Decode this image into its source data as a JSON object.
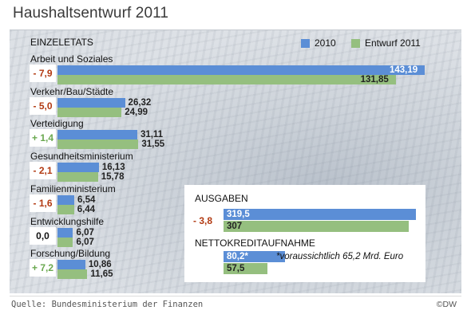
{
  "title": "Haushaltsentwurf 2011",
  "section_label": "EINZELETATS",
  "legend": [
    {
      "name": "2010",
      "color": "#5b8ed6"
    },
    {
      "name": "Entwurf 2011",
      "color": "#95bf7f"
    }
  ],
  "chart_data": [
    {
      "type": "bar",
      "title": "EINZELETATS",
      "categories": [
        "Arbeit und Soziales",
        "Verkehr/Bau/Städte",
        "Verteidigung",
        "Gesundheitsministerium",
        "Familienministerium",
        "Entwicklungshilfe",
        "Forschung/Bildung"
      ],
      "series": [
        {
          "name": "2010",
          "values": [
            143.19,
            26.32,
            31.11,
            16.13,
            6.54,
            6.07,
            10.86
          ],
          "labels": [
            "143,19",
            "26,32",
            "31,11",
            "16,13",
            "6,54",
            "6,07",
            "10,86"
          ]
        },
        {
          "name": "Entwurf 2011",
          "values": [
            131.85,
            24.99,
            31.55,
            15.78,
            6.44,
            6.07,
            11.65
          ],
          "labels": [
            "131,85",
            "24,99",
            "31,55",
            "15,78",
            "6,44",
            "6,07",
            "11,65"
          ]
        }
      ],
      "changes": [
        "- 7,9",
        "- 5,0",
        "+ 1,4",
        "- 2,1",
        "- 1,6",
        "0,0",
        "+ 7,2"
      ],
      "xlim": [
        0,
        143.19
      ]
    },
    {
      "type": "bar",
      "title": "AUSGABEN",
      "series": [
        {
          "name": "2010",
          "values": [
            319.5
          ],
          "labels": [
            "319,5"
          ]
        },
        {
          "name": "Entwurf 2011",
          "values": [
            307
          ],
          "labels": [
            "307"
          ]
        }
      ],
      "change": "- 3,8",
      "xlim": [
        0,
        319.5
      ]
    },
    {
      "type": "bar",
      "title": "NETTOKREDITAUFNAHME",
      "series": [
        {
          "name": "2010",
          "values": [
            80.2
          ],
          "labels": [
            "80,2*"
          ]
        },
        {
          "name": "Entwurf 2011",
          "values": [
            57.5
          ],
          "labels": [
            "57,5"
          ]
        }
      ],
      "note": "*voraussichtlich 65,2 Mrd. Euro"
    }
  ],
  "footer": {
    "source": "Quelle: Bundesministerium der Finanzen",
    "brand": "©DW"
  }
}
